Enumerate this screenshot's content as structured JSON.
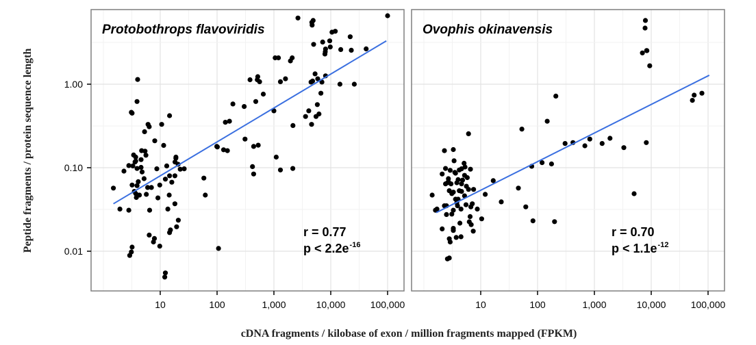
{
  "chart_data": {
    "type": "scatter",
    "xlabel": "cDNA fragments / kilobase of exon / million fragments mapped (FPKM)",
    "ylabel": "Peptide fragments / protein sequence length",
    "x_scale": "log10",
    "y_scale": "log10",
    "xlim": [
      1.0,
      200000
    ],
    "ylim": [
      0.0035,
      7.5
    ],
    "x_ticks": [
      10,
      100,
      1000,
      10000,
      100000
    ],
    "x_tick_labels": [
      "10",
      "100",
      "1,000",
      "10,000",
      "100,000"
    ],
    "y_ticks": [
      1.0,
      0.1,
      0.01
    ],
    "y_tick_labels": [
      "1.00",
      "0.10",
      "0.01"
    ],
    "grid": true,
    "fit_line_color": "#3a6fe0",
    "point_color": "#000000",
    "panels": [
      {
        "title": "Protobothrops flavoviridis",
        "stat_r": "r = 0.77",
        "stat_p_prefix": "p <  2.2e",
        "stat_p_exp": "-16",
        "fit_line": {
          "x": [
            1.5,
            95000
          ],
          "y": [
            0.037,
            3.3
          ]
        },
        "points": [
          [
            1.5,
            0.057
          ],
          [
            1.95,
            0.032
          ],
          [
            2.3,
            0.091
          ],
          [
            2.8,
            0.106
          ],
          [
            2.8,
            0.031
          ],
          [
            2.9,
            0.0089
          ],
          [
            3.1,
            0.0098
          ],
          [
            3.2,
            0.0112
          ],
          [
            3.2,
            0.062
          ],
          [
            3.2,
            0.45
          ],
          [
            3.1,
            0.46
          ],
          [
            3.3,
            0.105
          ],
          [
            3.4,
            0.142
          ],
          [
            3.5,
            0.052
          ],
          [
            3.6,
            0.117
          ],
          [
            3.7,
            0.12
          ],
          [
            3.7,
            0.134
          ],
          [
            3.7,
            0.049
          ],
          [
            3.8,
            0.044
          ],
          [
            3.9,
            0.62
          ],
          [
            3.9,
            0.098
          ],
          [
            3.9,
            0.061
          ],
          [
            4.0,
            1.14
          ],
          [
            4.1,
            0.068
          ],
          [
            4.3,
            0.047
          ],
          [
            4.6,
            0.125
          ],
          [
            4.6,
            0.101
          ],
          [
            4.7,
            0.16
          ],
          [
            4.8,
            0.089
          ],
          [
            5.2,
            0.074
          ],
          [
            5.3,
            0.27
          ],
          [
            5.4,
            0.158
          ],
          [
            5.6,
            0.141
          ],
          [
            5.7,
            0.048
          ],
          [
            6.0,
            0.058
          ],
          [
            6.1,
            0.33
          ],
          [
            6.4,
            0.31
          ],
          [
            6.4,
            0.0156
          ],
          [
            6.5,
            0.031
          ],
          [
            7.0,
            0.058
          ],
          [
            7.6,
            0.0129
          ],
          [
            7.9,
            0.0142
          ],
          [
            8.0,
            0.21
          ],
          [
            8.7,
            0.097
          ],
          [
            9.1,
            0.0435
          ],
          [
            9.8,
            0.062
          ],
          [
            9.8,
            0.0115
          ],
          [
            10.6,
            0.33
          ],
          [
            11.5,
            0.185
          ],
          [
            12.0,
            0.0049
          ],
          [
            12.3,
            0.0055
          ],
          [
            12.3,
            0.073
          ],
          [
            13.0,
            0.105
          ],
          [
            13.6,
            0.032
          ],
          [
            14.4,
            0.047
          ],
          [
            14.6,
            0.08
          ],
          [
            14.6,
            0.42
          ],
          [
            14.6,
            0.0167
          ],
          [
            15.1,
            0.018
          ],
          [
            16.0,
            0.067
          ],
          [
            18.1,
            0.037
          ],
          [
            18.1,
            0.08
          ],
          [
            18.2,
            0.117
          ],
          [
            18.8,
            0.13
          ],
          [
            18.9,
            0.134
          ],
          [
            19.4,
            0.0196
          ],
          [
            20.6,
            0.11
          ],
          [
            20.8,
            0.0235
          ],
          [
            22.5,
            0.096
          ],
          [
            26.4,
            0.097
          ],
          [
            58.5,
            0.075
          ],
          [
            62.0,
            0.047
          ],
          [
            99.0,
            0.18
          ],
          [
            101.0,
            0.177
          ],
          [
            106.0,
            0.0108
          ],
          [
            130.0,
            0.164
          ],
          [
            140.0,
            0.35
          ],
          [
            152.0,
            0.16
          ],
          [
            165.0,
            0.36
          ],
          [
            190.0,
            0.58
          ],
          [
            300.0,
            0.54
          ],
          [
            310.0,
            0.22
          ],
          [
            380.0,
            1.13
          ],
          [
            420.0,
            0.103
          ],
          [
            440.0,
            0.084
          ],
          [
            440.0,
            0.18
          ],
          [
            480.0,
            0.62
          ],
          [
            510.0,
            1.13
          ],
          [
            520.0,
            1.23
          ],
          [
            530.0,
            0.186
          ],
          [
            560.0,
            1.07
          ],
          [
            650.0,
            0.76
          ],
          [
            1000.0,
            0.48
          ],
          [
            1050.0,
            2.07
          ],
          [
            1100.0,
            0.134
          ],
          [
            1200.0,
            2.07
          ],
          [
            1300.0,
            0.094
          ],
          [
            1300.0,
            1.07
          ],
          [
            1600.0,
            1.16
          ],
          [
            1950.0,
            1.9
          ],
          [
            2100.0,
            2.07
          ],
          [
            2150.0,
            0.098
          ],
          [
            2160.0,
            0.32
          ],
          [
            2650.0,
            6.2
          ],
          [
            3600.0,
            0.41
          ],
          [
            4100.0,
            0.48
          ],
          [
            4500.0,
            1.06
          ],
          [
            4600.0,
            0.33
          ],
          [
            4650.0,
            5.5
          ],
          [
            4700.0,
            5.1
          ],
          [
            4800.0,
            1.09
          ],
          [
            4900.0,
            5.8
          ],
          [
            5000.0,
            3.0
          ],
          [
            5300.0,
            1.33
          ],
          [
            5500.0,
            0.41
          ],
          [
            5800.0,
            0.57
          ],
          [
            5900.0,
            1.16
          ],
          [
            6200.0,
            0.44
          ],
          [
            6700.0,
            0.78
          ],
          [
            7000.0,
            1.06
          ],
          [
            7200.0,
            3.2
          ],
          [
            7900.0,
            2.3
          ],
          [
            8100.0,
            2.64
          ],
          [
            8000.0,
            2.45
          ],
          [
            8100.0,
            1.26
          ],
          [
            9800.0,
            2.79
          ],
          [
            9600.0,
            3.3
          ],
          [
            10500.0,
            4.2
          ],
          [
            12000.0,
            4.3
          ],
          [
            14500.0,
            1.0
          ],
          [
            15000.0,
            2.6
          ],
          [
            22000.0,
            3.7
          ],
          [
            23000.0,
            2.55
          ],
          [
            26000.0,
            1.0
          ],
          [
            42000.0,
            2.65
          ],
          [
            100000.0,
            6.6
          ]
        ]
      },
      {
        "title": "Ovophis okinavensis",
        "stat_r": "r = 0.70",
        "stat_p_prefix": "p <  1.1e",
        "stat_p_exp": "-12",
        "fit_line": {
          "x": [
            1.65,
            105000
          ],
          "y": [
            0.029,
            1.28
          ]
        },
        "points": [
          [
            1.4,
            0.047
          ],
          [
            1.6,
            0.031
          ],
          [
            1.7,
            0.032
          ],
          [
            2.1,
            0.084
          ],
          [
            2.1,
            0.0185
          ],
          [
            2.3,
            0.16
          ],
          [
            2.3,
            0.035
          ],
          [
            2.4,
            0.064
          ],
          [
            2.4,
            0.098
          ],
          [
            2.5,
            0.0275
          ],
          [
            2.5,
            0.035
          ],
          [
            2.6,
            0.066
          ],
          [
            2.6,
            0.0081
          ],
          [
            2.7,
            0.068
          ],
          [
            2.7,
            0.074
          ],
          [
            2.8,
            0.053
          ],
          [
            2.8,
            0.0141
          ],
          [
            2.8,
            0.0083
          ],
          [
            2.9,
            0.0129
          ],
          [
            2.9,
            0.093
          ],
          [
            3.0,
            0.064
          ],
          [
            3.1,
            0.049
          ],
          [
            3.1,
            0.0278
          ],
          [
            3.3,
            0.0188
          ],
          [
            3.3,
            0.051
          ],
          [
            3.3,
            0.0177
          ],
          [
            3.3,
            0.031
          ],
          [
            3.4,
            0.121
          ],
          [
            3.3,
            0.165
          ],
          [
            3.5,
            0.088
          ],
          [
            3.6,
            0.042
          ],
          [
            3.6,
            0.086
          ],
          [
            3.7,
            0.0146
          ],
          [
            3.8,
            0.038
          ],
          [
            3.8,
            0.066
          ],
          [
            3.9,
            0.035
          ],
          [
            4.0,
            0.072
          ],
          [
            4.0,
            0.042
          ],
          [
            4.2,
            0.094
          ],
          [
            4.2,
            0.053
          ],
          [
            4.3,
            0.0217
          ],
          [
            4.5,
            0.0149
          ],
          [
            4.5,
            0.032
          ],
          [
            4.6,
            0.097
          ],
          [
            4.6,
            0.064
          ],
          [
            4.6,
            0.052
          ],
          [
            4.8,
            0.071
          ],
          [
            5.1,
            0.113
          ],
          [
            5.2,
            0.081
          ],
          [
            5.2,
            0.046
          ],
          [
            5.3,
            0.102
          ],
          [
            5.5,
            0.036
          ],
          [
            5.6,
            0.06
          ],
          [
            5.8,
            0.076
          ],
          [
            6.1,
            0.055
          ],
          [
            6.6,
            0.096
          ],
          [
            6.1,
            0.255
          ],
          [
            6.3,
            0.0225
          ],
          [
            6.5,
            0.026
          ],
          [
            6.7,
            0.034
          ],
          [
            6.8,
            0.0208
          ],
          [
            7.1,
            0.037
          ],
          [
            7.4,
            0.0174
          ],
          [
            7.5,
            0.055
          ],
          [
            8.7,
            0.032
          ],
          [
            10.4,
            0.0244
          ],
          [
            12.0,
            0.048
          ],
          [
            16.6,
            0.07
          ],
          [
            23.0,
            0.039
          ],
          [
            46.0,
            0.057
          ],
          [
            53.0,
            0.29
          ],
          [
            62.0,
            0.034
          ],
          [
            79.0,
            0.104
          ],
          [
            83.0,
            0.0231
          ],
          [
            120.0,
            0.115
          ],
          [
            148.0,
            0.36
          ],
          [
            176.0,
            0.111
          ],
          [
            199.0,
            0.0226
          ],
          [
            210.0,
            0.72
          ],
          [
            305.0,
            0.195
          ],
          [
            420.0,
            0.2
          ],
          [
            680.0,
            0.183
          ],
          [
            830.0,
            0.22
          ],
          [
            1370.0,
            0.195
          ],
          [
            1880.0,
            0.225
          ],
          [
            3300.0,
            0.174
          ],
          [
            5000.0,
            0.0488
          ],
          [
            7000.0,
            2.37
          ],
          [
            7800.0,
            4.7
          ],
          [
            7900.0,
            5.8
          ],
          [
            8200.0,
            0.2
          ],
          [
            8300.0,
            2.53
          ],
          [
            8400.0,
            2.52
          ],
          [
            9400.0,
            1.66
          ],
          [
            53000.0,
            0.64
          ],
          [
            57000.0,
            0.74
          ],
          [
            78000.0,
            0.78
          ]
        ]
      }
    ]
  }
}
